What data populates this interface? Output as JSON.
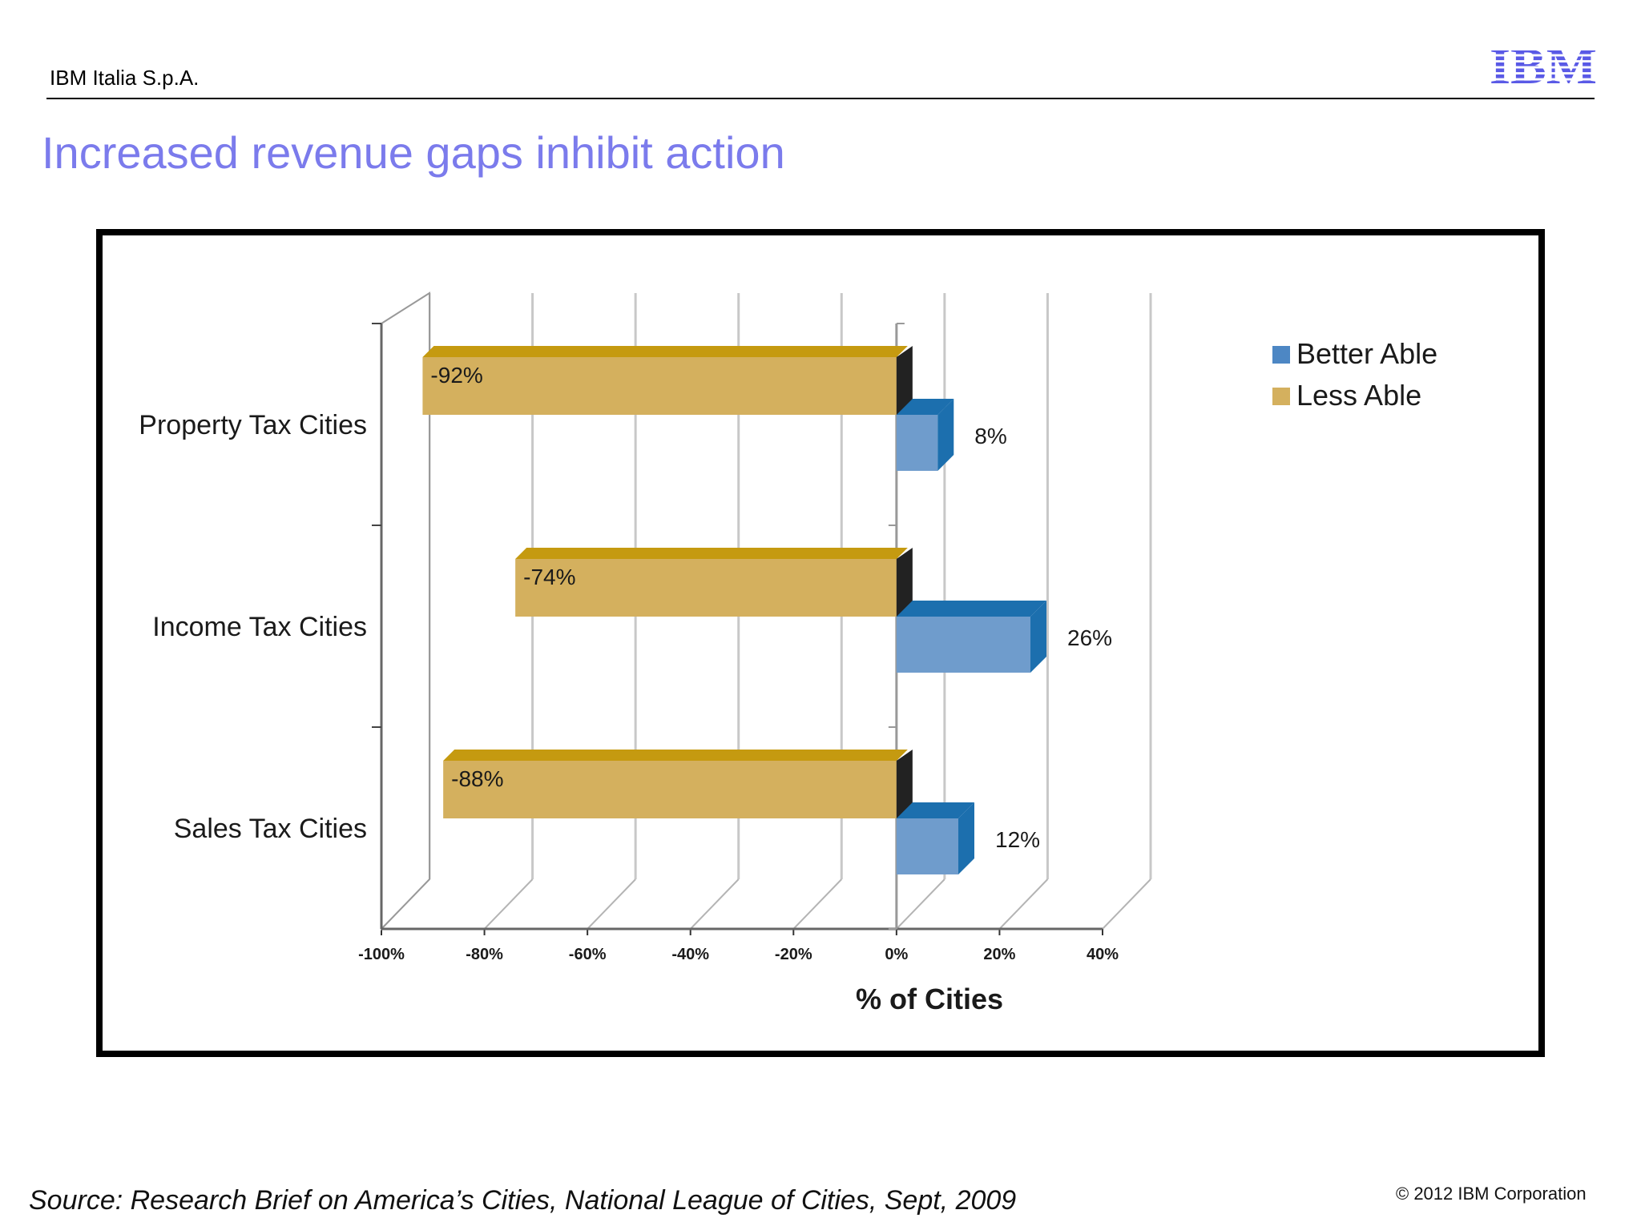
{
  "header": {
    "company": "IBM Italia S.p.A.",
    "logo_text": "IBM"
  },
  "title": "Increased revenue gaps inhibit action",
  "footer": {
    "source": "Source: Research Brief on America’s Cities, National League of Cities, Sept, 2009",
    "copyright": "© 2012 IBM Corporation"
  },
  "colors": {
    "title": "#7b7bec",
    "less_able_front": "#d4b05e",
    "less_able_top": "#c59a10",
    "better_able_front": "#6f9ccc",
    "better_able_side": "#1c6fae",
    "logo": "#5a5ae6"
  },
  "chart_data": {
    "type": "bar",
    "orientation": "horizontal",
    "style": "3d",
    "categories": [
      "Property Tax Cities",
      "Income Tax Cities",
      "Sales Tax Cities"
    ],
    "series": [
      {
        "name": "Better Able",
        "values": [
          8,
          26,
          12
        ],
        "labels": [
          "8%",
          "26%",
          "12%"
        ]
      },
      {
        "name": "Less Able",
        "values": [
          -92,
          -74,
          -88
        ],
        "labels": [
          "-92%",
          "-74%",
          "-88%"
        ]
      }
    ],
    "xlabel": "% of Cities",
    "ylabel": "",
    "xlim": [
      -100,
      40
    ],
    "xticks": [
      -100,
      -80,
      -60,
      -40,
      -20,
      0,
      20,
      40
    ],
    "xtick_labels": [
      "-100%",
      "-80%",
      "-60%",
      "-40%",
      "-20%",
      "0%",
      "20%",
      "40%"
    ],
    "grid": true,
    "legend_position": "top-right",
    "legend": [
      "Better Able",
      "Less Able"
    ]
  }
}
